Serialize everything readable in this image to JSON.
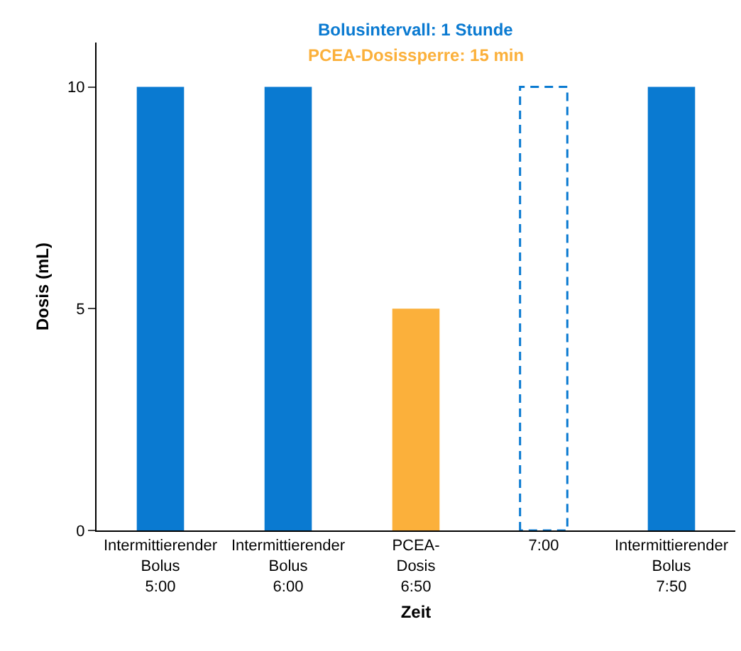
{
  "chart_data": {
    "type": "bar",
    "title": "Bolusintervall: 1 Stunde",
    "subtitle": "PCEA-Dosissperre: 15 min",
    "xlabel": "Zeit",
    "ylabel": "Dosis (mL)",
    "categories": [
      "Intermittierender\nBolus\n5:00",
      "Intermittierender\nBolus\n6:00",
      "PCEA-\nDosis\n6:50",
      "7:00",
      "Intermittierender\nBolus\n7:50"
    ],
    "series": [
      {
        "colors": [
          "#0a7ad1",
          "#0a7ad1",
          "#fbb03b",
          null,
          "#0a7ad1"
        ],
        "values": [
          10,
          10,
          5,
          null,
          10
        ]
      },
      {
        "color": "#0a7ad1",
        "line_style": "dashed",
        "values": [
          null,
          null,
          null,
          10,
          null
        ]
      }
    ],
    "ylim": [
      0,
      11
    ],
    "yticks": [
      0,
      5,
      10
    ],
    "grid": false
  }
}
